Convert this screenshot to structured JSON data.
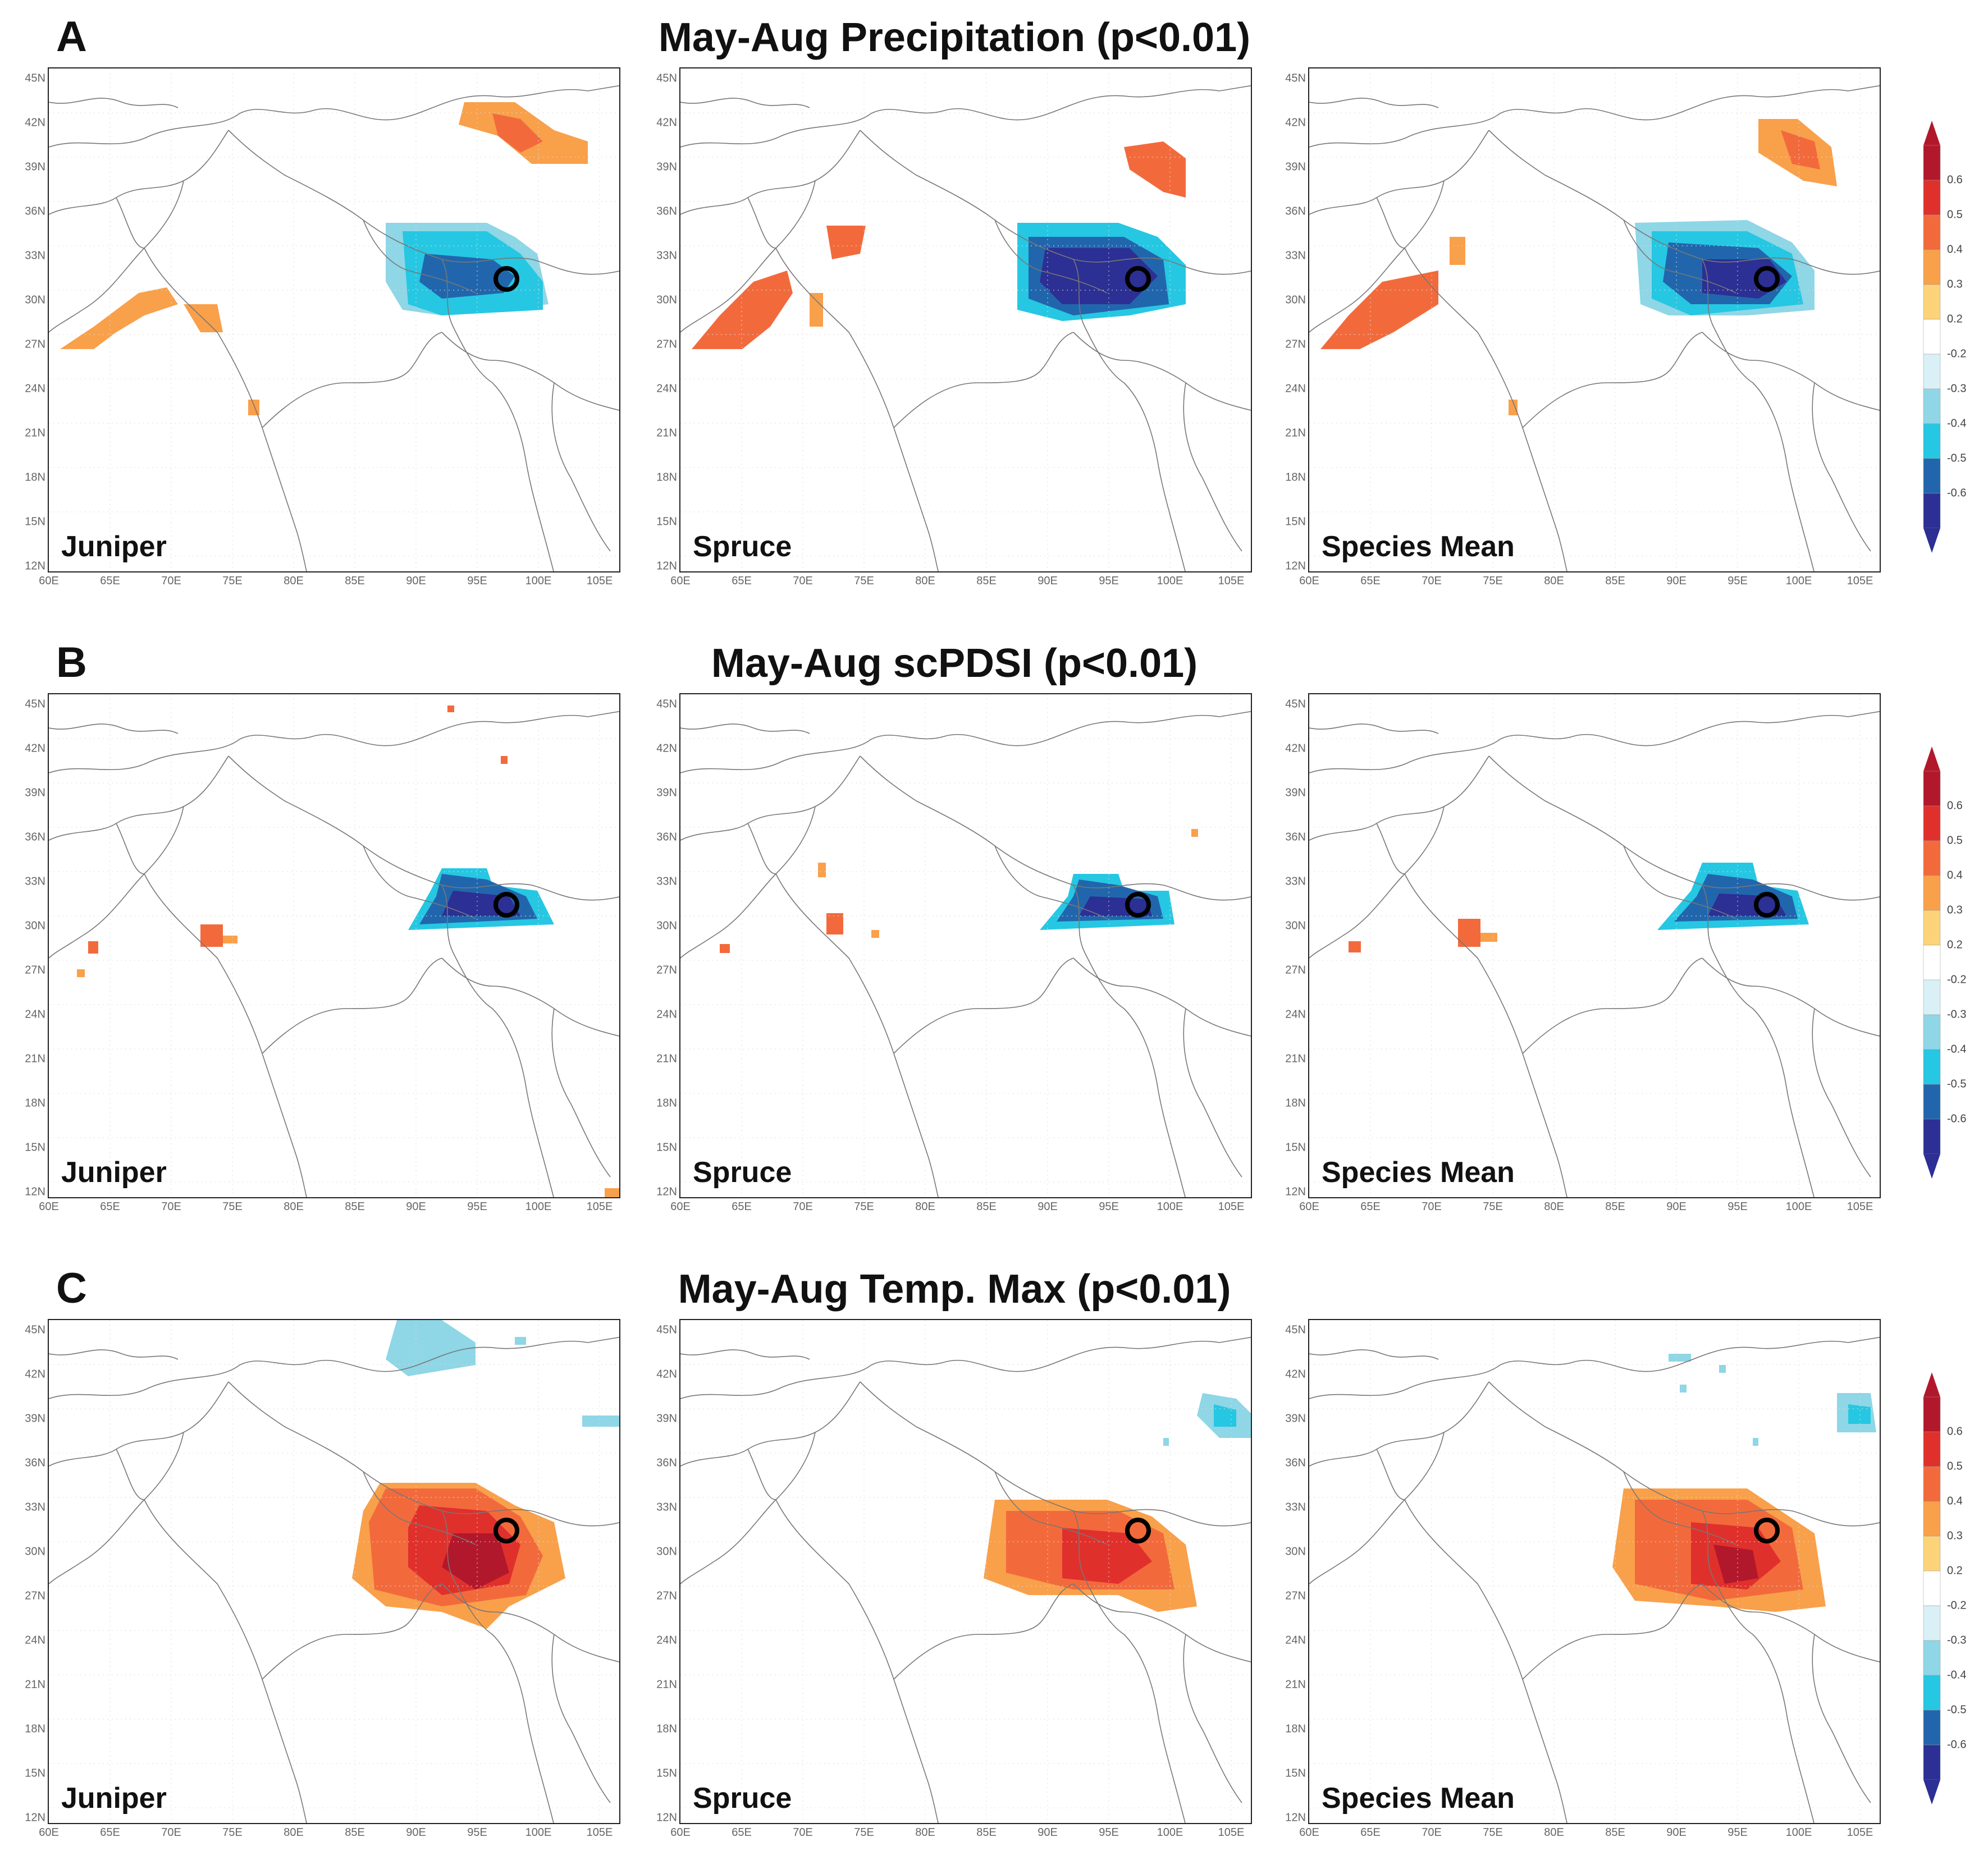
{
  "figure": {
    "lat_ticks": [
      "45N",
      "42N",
      "39N",
      "36N",
      "33N",
      "30N",
      "27N",
      "24N",
      "21N",
      "18N",
      "15N",
      "12N"
    ],
    "lon_ticks": [
      "60E",
      "65E",
      "70E",
      "75E",
      "80E",
      "85E",
      "90E",
      "95E",
      "100E",
      "105E"
    ],
    "colorbar_ticks": [
      "0.6",
      "0.5",
      "0.4",
      "0.3",
      "0.2",
      "-0.2",
      "-0.3",
      "-0.4",
      "-0.5",
      "-0.6"
    ],
    "colorbar_colors": [
      "#b2182b",
      "#e0302c",
      "#f26a3c",
      "#f9a04b",
      "#fdd37a",
      "#ffffff",
      "#d8f0f6",
      "#8fd6e6",
      "#26c7e2",
      "#2166ac",
      "#2c2f93"
    ]
  },
  "rows": [
    {
      "letter": "A",
      "title": "May-Aug Precipitation (p<0.01)",
      "panels": [
        {
          "label": "Juniper"
        },
        {
          "label": "Spruce"
        },
        {
          "label": "Species Mean"
        }
      ]
    },
    {
      "letter": "B",
      "title": "May-Aug scPDSI (p<0.01)",
      "panels": [
        {
          "label": "Juniper"
        },
        {
          "label": "Spruce"
        },
        {
          "label": "Species Mean"
        }
      ]
    },
    {
      "letter": "C",
      "title": "May-Aug Temp. Max (p<0.01)",
      "panels": [
        {
          "label": "Juniper"
        },
        {
          "label": "Spruce"
        },
        {
          "label": "Species Mean"
        }
      ]
    }
  ]
}
